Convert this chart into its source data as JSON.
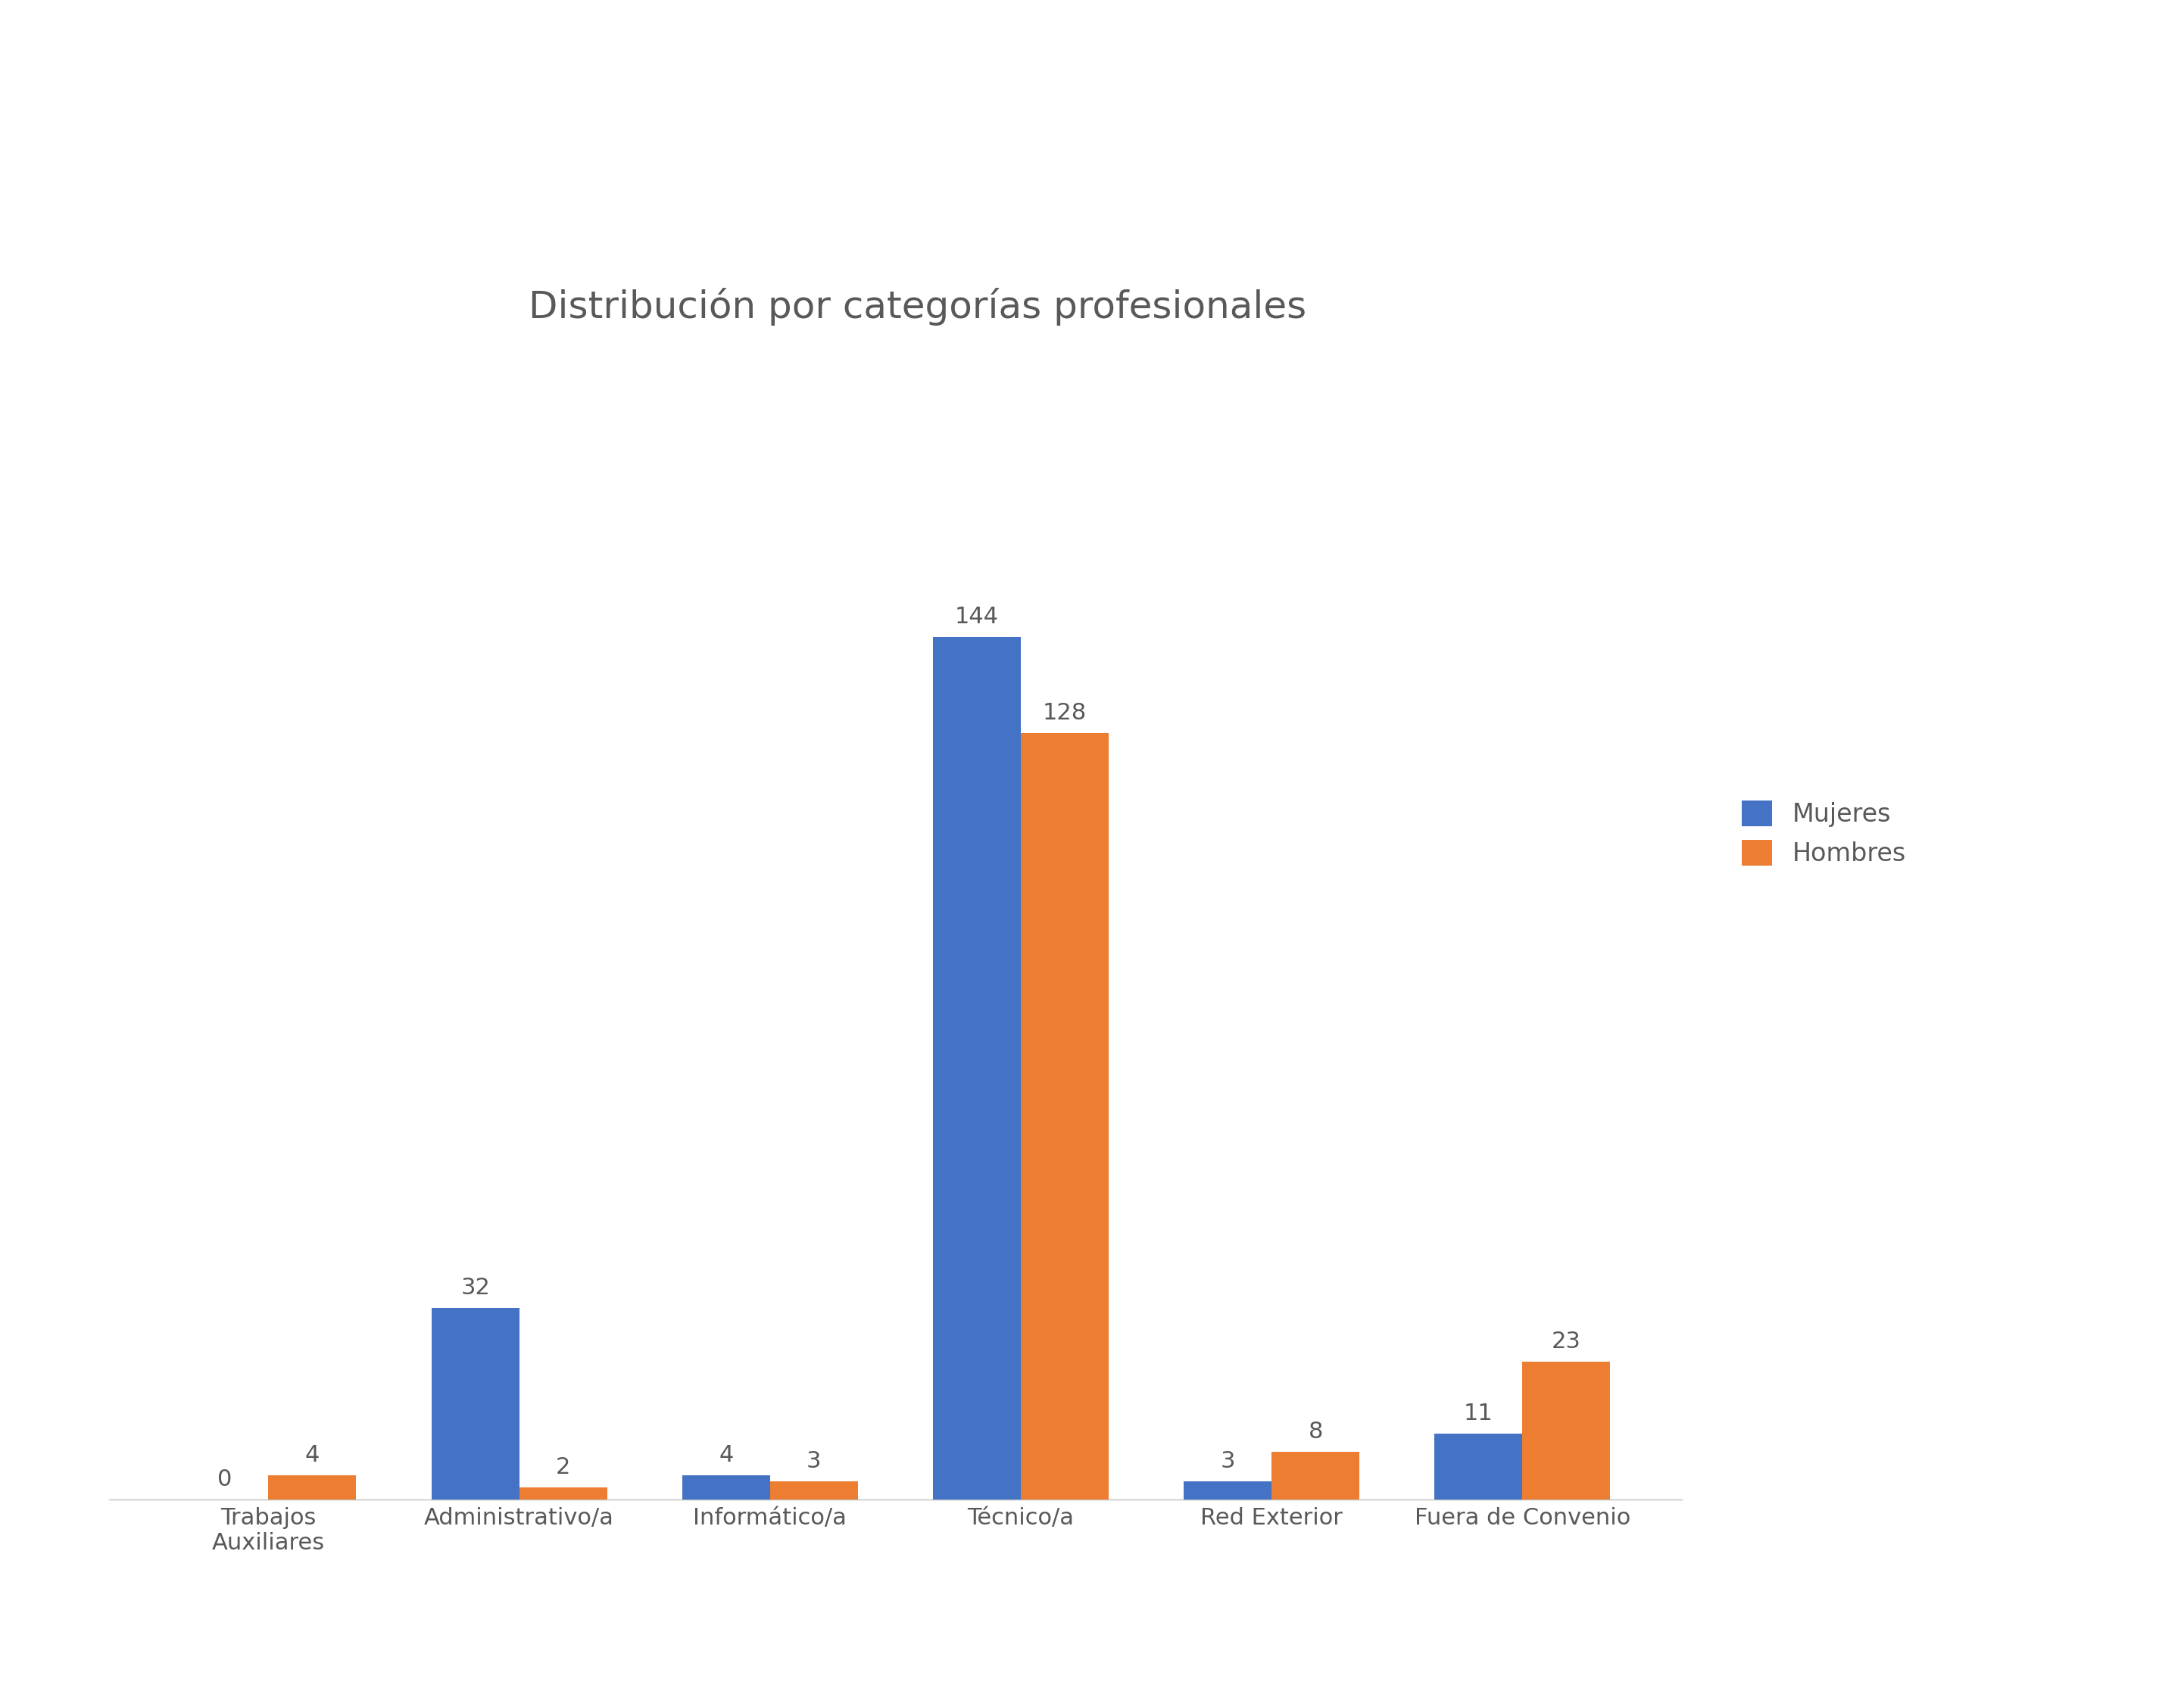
{
  "title": "Distribución por categorías profesionales",
  "categories": [
    "Trabajos\nAuxiliares",
    "Administrativo/a",
    "Informático/a",
    "Técnico/a",
    "Red Exterior",
    "Fuera de Convenio"
  ],
  "mujeres": [
    0,
    32,
    4,
    144,
    3,
    11
  ],
  "hombres": [
    4,
    2,
    3,
    128,
    8,
    23
  ],
  "color_mujeres": "#4472C4",
  "color_hombres": "#ED7D31",
  "legend_mujeres": "Mujeres",
  "legend_hombres": "Hombres",
  "background_color": "#FFFFFF",
  "title_fontsize": 36,
  "tick_fontsize": 22,
  "legend_fontsize": 24,
  "bar_value_fontsize": 22,
  "title_color": "#595959",
  "text_color": "#595959",
  "ylim": [
    0,
    165
  ]
}
